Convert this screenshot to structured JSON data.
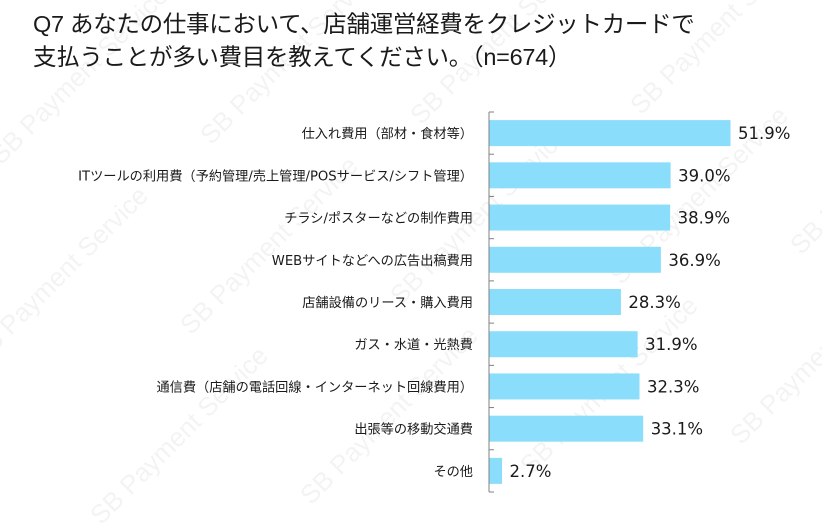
{
  "title_lines": [
    "Q7 あなたの仕事において、店舗運営経費をクレジットカードで",
    "支払うことが多い費目を教えてください。（n=674）"
  ],
  "watermark_text": "SB Payment Service",
  "colors": {
    "bar": "#8ADDFB",
    "axis": "#808080",
    "text": "#1a1a1a"
  },
  "chart_data": {
    "type": "bar",
    "orientation": "horizontal",
    "title": "Q7 あなたの仕事において、店舗運営経費をクレジットカードで支払うことが多い費目を教えてください。（n=674）",
    "categories": [
      "仕入れ費用（部材・食材等）",
      "ITツールの利用費（予約管理/売上管理/POSサービス/シフト管理）",
      "チラシ/ポスターなどの制作費用",
      "WEBサイトなどへの広告出稿費用",
      "店舗設備のリース・購入費用",
      "ガス・水道・光熱費",
      "通信費（店舗の電話回線・インターネット回線費用）",
      "出張等の移動交通費",
      "その他"
    ],
    "values": [
      51.9,
      39.0,
      38.9,
      36.9,
      28.3,
      31.9,
      32.3,
      33.1,
      2.7
    ],
    "labels": [
      "51.9%",
      "39.0%",
      "38.9%",
      "36.9%",
      "28.3%",
      "31.9%",
      "32.3%",
      "33.1%",
      "2.7%"
    ],
    "unit": "%",
    "xlabel": "",
    "ylabel": "",
    "xlim": [
      0,
      60
    ],
    "grid": false,
    "legend": "none"
  }
}
